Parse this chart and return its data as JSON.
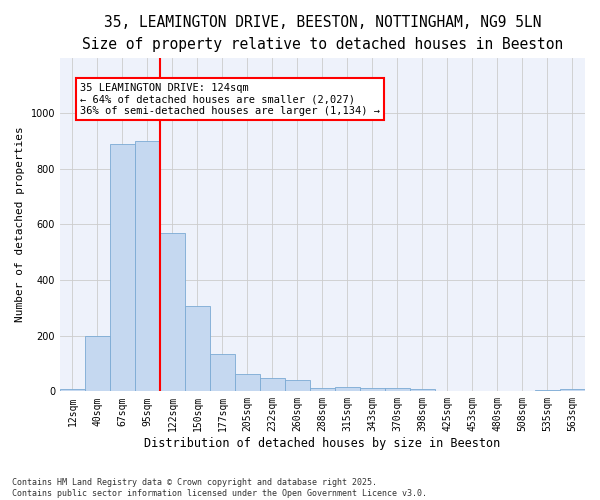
{
  "title": "35, LEAMINGTON DRIVE, BEESTON, NOTTINGHAM, NG9 5LN",
  "subtitle": "Size of property relative to detached houses in Beeston",
  "xlabel": "Distribution of detached houses by size in Beeston",
  "ylabel": "Number of detached properties",
  "categories": [
    "12sqm",
    "40sqm",
    "67sqm",
    "95sqm",
    "122sqm",
    "150sqm",
    "177sqm",
    "205sqm",
    "232sqm",
    "260sqm",
    "288sqm",
    "315sqm",
    "343sqm",
    "370sqm",
    "398sqm",
    "425sqm",
    "453sqm",
    "480sqm",
    "508sqm",
    "535sqm",
    "563sqm"
  ],
  "values": [
    10,
    200,
    890,
    900,
    570,
    305,
    135,
    63,
    48,
    40,
    12,
    15,
    13,
    13,
    8,
    2,
    1,
    1,
    0,
    5,
    10
  ],
  "bar_color": "#C5D8F0",
  "bar_edge_color": "#7BAAD4",
  "grid_color": "#CCCCCC",
  "bg_color": "#EEF2FB",
  "vline_color": "red",
  "annotation_text": "35 LEAMINGTON DRIVE: 124sqm\n← 64% of detached houses are smaller (2,027)\n36% of semi-detached houses are larger (1,134) →",
  "ylim": [
    0,
    1200
  ],
  "yticks": [
    0,
    200,
    400,
    600,
    800,
    1000
  ],
  "footer": "Contains HM Land Registry data © Crown copyright and database right 2025.\nContains public sector information licensed under the Open Government Licence v3.0.",
  "title_fontsize": 10.5,
  "subtitle_fontsize": 9,
  "ylabel_fontsize": 8,
  "xlabel_fontsize": 8.5,
  "tick_fontsize": 7,
  "annotation_fontsize": 7.5,
  "footer_fontsize": 6
}
